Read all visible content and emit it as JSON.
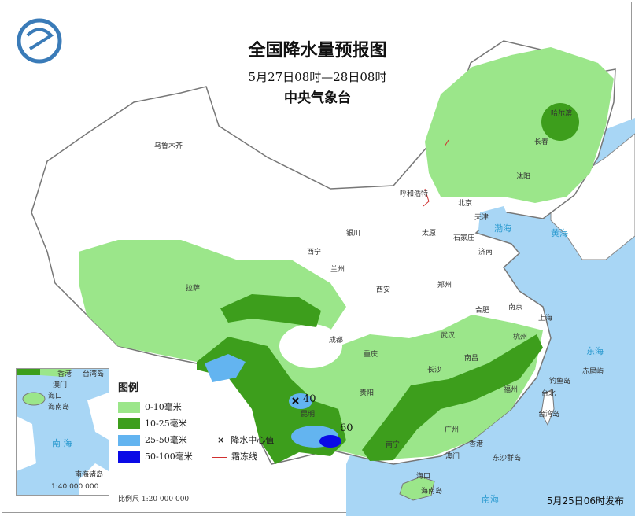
{
  "title": "全国降水量预报图",
  "period": "5月27日08时—28日08时",
  "issuer": "中央气象台",
  "logo_icon": "cma-logo-icon",
  "colors": {
    "rain_0_10": "#9be68a",
    "rain_10_25": "#3d9e1c",
    "rain_25_50": "#63b4f0",
    "rain_50_100": "#0a0ae6",
    "sea": "#a8d6f5",
    "frost_line": "#d03030"
  },
  "legend": {
    "title": "图例",
    "items": [
      {
        "label": "0-10毫米",
        "color": "#9be68a"
      },
      {
        "label": "10-25毫米",
        "color": "#3d9e1c"
      },
      {
        "label": "25-50毫米",
        "color": "#63b4f0"
      },
      {
        "label": "50-100毫米",
        "color": "#0a0ae6"
      }
    ],
    "center_marker": {
      "symbol": "×",
      "label": "降水中心值"
    },
    "frost_line": {
      "label": "霜冻线"
    }
  },
  "rain_centers": [
    {
      "value": "40"
    },
    {
      "value": "60"
    }
  ],
  "cities": [
    "乌鲁木齐",
    "拉萨",
    "西宁",
    "兰州",
    "银川",
    "呼和浩特",
    "北京",
    "天津",
    "太原",
    "石家庄",
    "济南",
    "西安",
    "郑州",
    "成都",
    "重庆",
    "武汉",
    "合肥",
    "南京",
    "上海",
    "杭州",
    "长沙",
    "南昌",
    "贵阳",
    "昆明",
    "南宁",
    "广州",
    "香港",
    "澳门",
    "福州",
    "台北",
    "台湾岛",
    "东沙群岛",
    "海口",
    "海南岛",
    "沈阳",
    "长春",
    "哈尔滨",
    "钓鱼岛",
    "赤尾屿"
  ],
  "seas": [
    "渤海",
    "黄海",
    "东海",
    "南海"
  ],
  "inset": {
    "labels": [
      "香港",
      "台湾岛",
      "澳门",
      "海口",
      "海南岛"
    ],
    "sea": "南 海",
    "name": "南海诸岛",
    "scale": "1:40 000 000"
  },
  "scale": "比例尺   1:20 000 000",
  "footer": "5月25日06时发布"
}
